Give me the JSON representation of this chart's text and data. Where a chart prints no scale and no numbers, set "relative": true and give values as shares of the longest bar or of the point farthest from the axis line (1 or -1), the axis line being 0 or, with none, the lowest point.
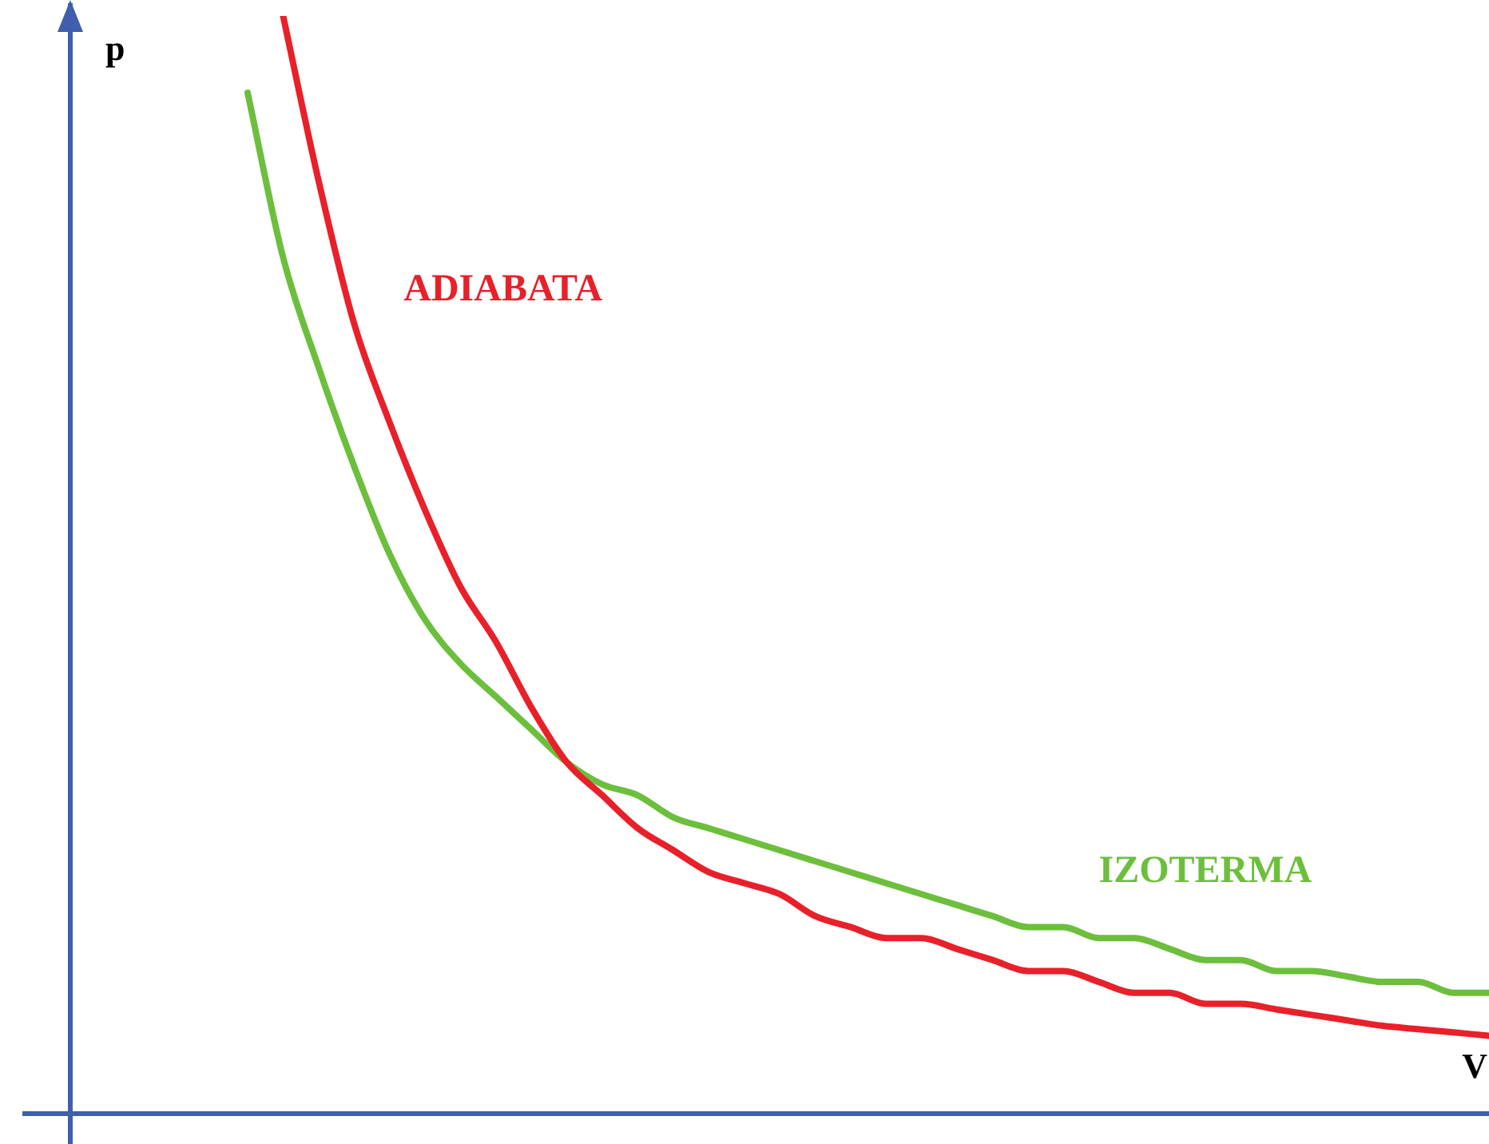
{
  "chart_data": {
    "type": "line",
    "xlabel": "V",
    "ylabel": "p",
    "relative": true,
    "grid": false,
    "legend": false,
    "marker": "none",
    "line_style": "solid",
    "categories": [
      null,
      null,
      null,
      null,
      null,
      null,
      null,
      null,
      null,
      null,
      null,
      null,
      null,
      null,
      null,
      null,
      null,
      null,
      null,
      null,
      null,
      null,
      null,
      null,
      null,
      null,
      null,
      null,
      null,
      null,
      null,
      null,
      null,
      null,
      null,
      null,
      null,
      null,
      null,
      null,
      null
    ],
    "series": [
      {
        "name": "ADIABATA",
        "color": "#e8202a",
        "values": [
          null,
          null,
          null,
          null,
          null,
          null,
          1.0,
          0.85,
          0.72,
          0.63,
          0.55,
          0.48,
          0.43,
          0.37,
          0.32,
          0.29,
          0.26,
          0.24,
          0.22,
          0.21,
          0.2,
          0.18,
          0.17,
          0.16,
          0.16,
          0.15,
          0.14,
          0.13,
          0.13,
          0.12,
          0.11,
          0.11,
          0.1,
          0.1,
          0.095,
          0.09,
          0.085,
          0.08,
          0.077,
          0.074,
          0.071
        ]
      },
      {
        "name": "IZOTERMA",
        "color": "#6cbf3c",
        "values": [
          null,
          null,
          null,
          null,
          null,
          0.93,
          0.78,
          0.68,
          0.59,
          0.51,
          0.45,
          0.41,
          0.38,
          0.35,
          0.32,
          0.3,
          0.29,
          0.27,
          0.26,
          0.25,
          0.24,
          0.23,
          0.22,
          0.21,
          0.2,
          0.19,
          0.18,
          0.17,
          0.17,
          0.16,
          0.16,
          0.15,
          0.14,
          0.14,
          0.13,
          0.13,
          0.125,
          0.12,
          0.12,
          0.11,
          0.11
        ]
      }
    ]
  }
}
